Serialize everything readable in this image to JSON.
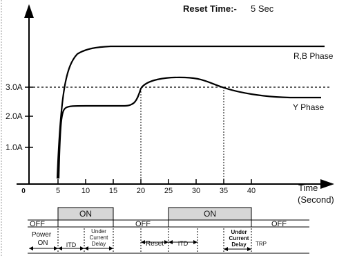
{
  "reset_time": {
    "label": "Reset Time:-",
    "value": "5 Sec"
  },
  "y_labels": [
    "1.0A",
    "2.0A",
    "3.0A"
  ],
  "x_ticks": [
    "0",
    "5",
    "10",
    "15",
    "20",
    "25",
    "30",
    "35",
    "40"
  ],
  "x_axis_label": [
    "Time",
    "(Second)"
  ],
  "curves": {
    "rb": "R,B Phase",
    "y": "Y Phase"
  },
  "state_bar": {
    "on_label": "ON",
    "off_label": "OFF"
  },
  "intervals": {
    "power_on": [
      "Power",
      "ON"
    ],
    "itd": "ITD",
    "under_current_delay": [
      "Under",
      "Current",
      "Delay"
    ],
    "reset": "Reset",
    "trip": "TRP"
  }
}
